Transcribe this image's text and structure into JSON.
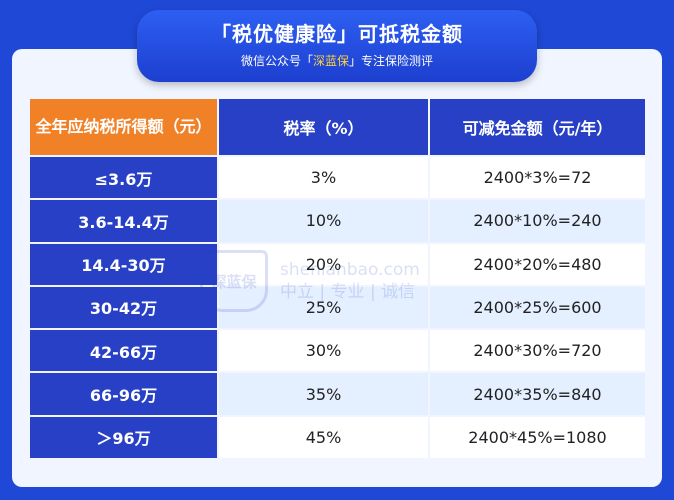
{
  "banner": {
    "title": "「税优健康险」可抵税金额",
    "sub_prefix": "微信公众号「",
    "sub_brand": "深蓝保",
    "sub_suffix": "」专注保险测评"
  },
  "table": {
    "headers": [
      "全年应纳税所得额（元）",
      "税率（%）",
      "可减免金额（元/年）"
    ],
    "rows": [
      {
        "bracket": "≤3.6万",
        "rate": "3%",
        "amount": "2400*3%=72"
      },
      {
        "bracket": "3.6-14.4万",
        "rate": "10%",
        "amount": "2400*10%=240"
      },
      {
        "bracket": "14.4-30万",
        "rate": "20%",
        "amount": "2400*20%=480"
      },
      {
        "bracket": "30-42万",
        "rate": "25%",
        "amount": "2400*25%=600"
      },
      {
        "bracket": "42-66万",
        "rate": "30%",
        "amount": "2400*30%=720"
      },
      {
        "bracket": "66-96万",
        "rate": "35%",
        "amount": "2400*35%=840"
      },
      {
        "bracket": "＞96万",
        "rate": "45%",
        "amount": "2400*45%=1080"
      }
    ]
  },
  "watermark": {
    "logo": "深蓝保",
    "domain": "shenlanbao.com",
    "slogan": "中立 | 专业 | 诚信"
  },
  "colors": {
    "background": "#1f48d6",
    "header_blue": "#2840c6",
    "header_orange": "#f08127",
    "brand_yellow": "#ffd23a"
  }
}
